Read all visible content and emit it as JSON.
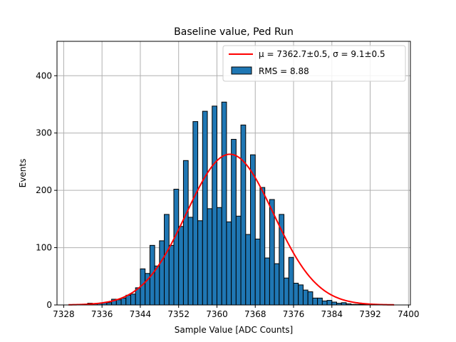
{
  "chart_data": {
    "type": "bar",
    "title": "Baseline value, Ped Run",
    "xlabel": "Sample Value [ADC Counts]",
    "ylabel": "Events",
    "xlim": [
      7326.6,
      7400.4
    ],
    "ylim": [
      0,
      460
    ],
    "xticks": [
      7328,
      7336,
      7344,
      7352,
      7360,
      7368,
      7376,
      7384,
      7392,
      7400
    ],
    "yticks": [
      0,
      100,
      200,
      300,
      400
    ],
    "grid": true,
    "legend_position": "top-right",
    "colors": {
      "bars": "#1f77b4",
      "bar_edge": "#000000",
      "fit": "#ff0000",
      "grid": "#b0b0b0"
    },
    "legend": [
      {
        "type": "line",
        "label": "μ = 7362.7±0.5, σ = 9.1±0.5"
      },
      {
        "type": "patch",
        "label": "RMS = 8.88"
      }
    ],
    "histogram": {
      "bin_width": 1,
      "bins_start": [
        7333,
        7334,
        7335,
        7336,
        7337,
        7338,
        7339,
        7340,
        7341,
        7342,
        7343,
        7344,
        7345,
        7346,
        7347,
        7348,
        7349,
        7350,
        7351,
        7352,
        7353,
        7354,
        7355,
        7356,
        7357,
        7358,
        7359,
        7360,
        7361,
        7362,
        7363,
        7364,
        7365,
        7366,
        7367,
        7368,
        7369,
        7370,
        7371,
        7372,
        7373,
        7374,
        7375,
        7376,
        7377,
        7378,
        7379,
        7380,
        7381,
        7382,
        7383,
        7384,
        7385,
        7386,
        7387,
        7388,
        7389,
        7390,
        7391
      ],
      "counts": [
        3,
        2,
        3,
        4,
        4,
        10,
        9,
        12,
        17,
        19,
        30,
        63,
        55,
        104,
        68,
        112,
        158,
        104,
        202,
        137,
        252,
        153,
        320,
        147,
        338,
        168,
        347,
        170,
        354,
        145,
        289,
        155,
        314,
        123,
        262,
        115,
        205,
        82,
        184,
        72,
        158,
        47,
        83,
        38,
        35,
        26,
        23,
        12,
        12,
        7,
        8,
        5,
        3,
        4,
        2,
        1,
        1,
        1,
        1
      ]
    },
    "fit": {
      "mu": 7362.7,
      "sigma": 9.1,
      "amplitude": 263,
      "range": [
        7329,
        7397
      ]
    }
  }
}
